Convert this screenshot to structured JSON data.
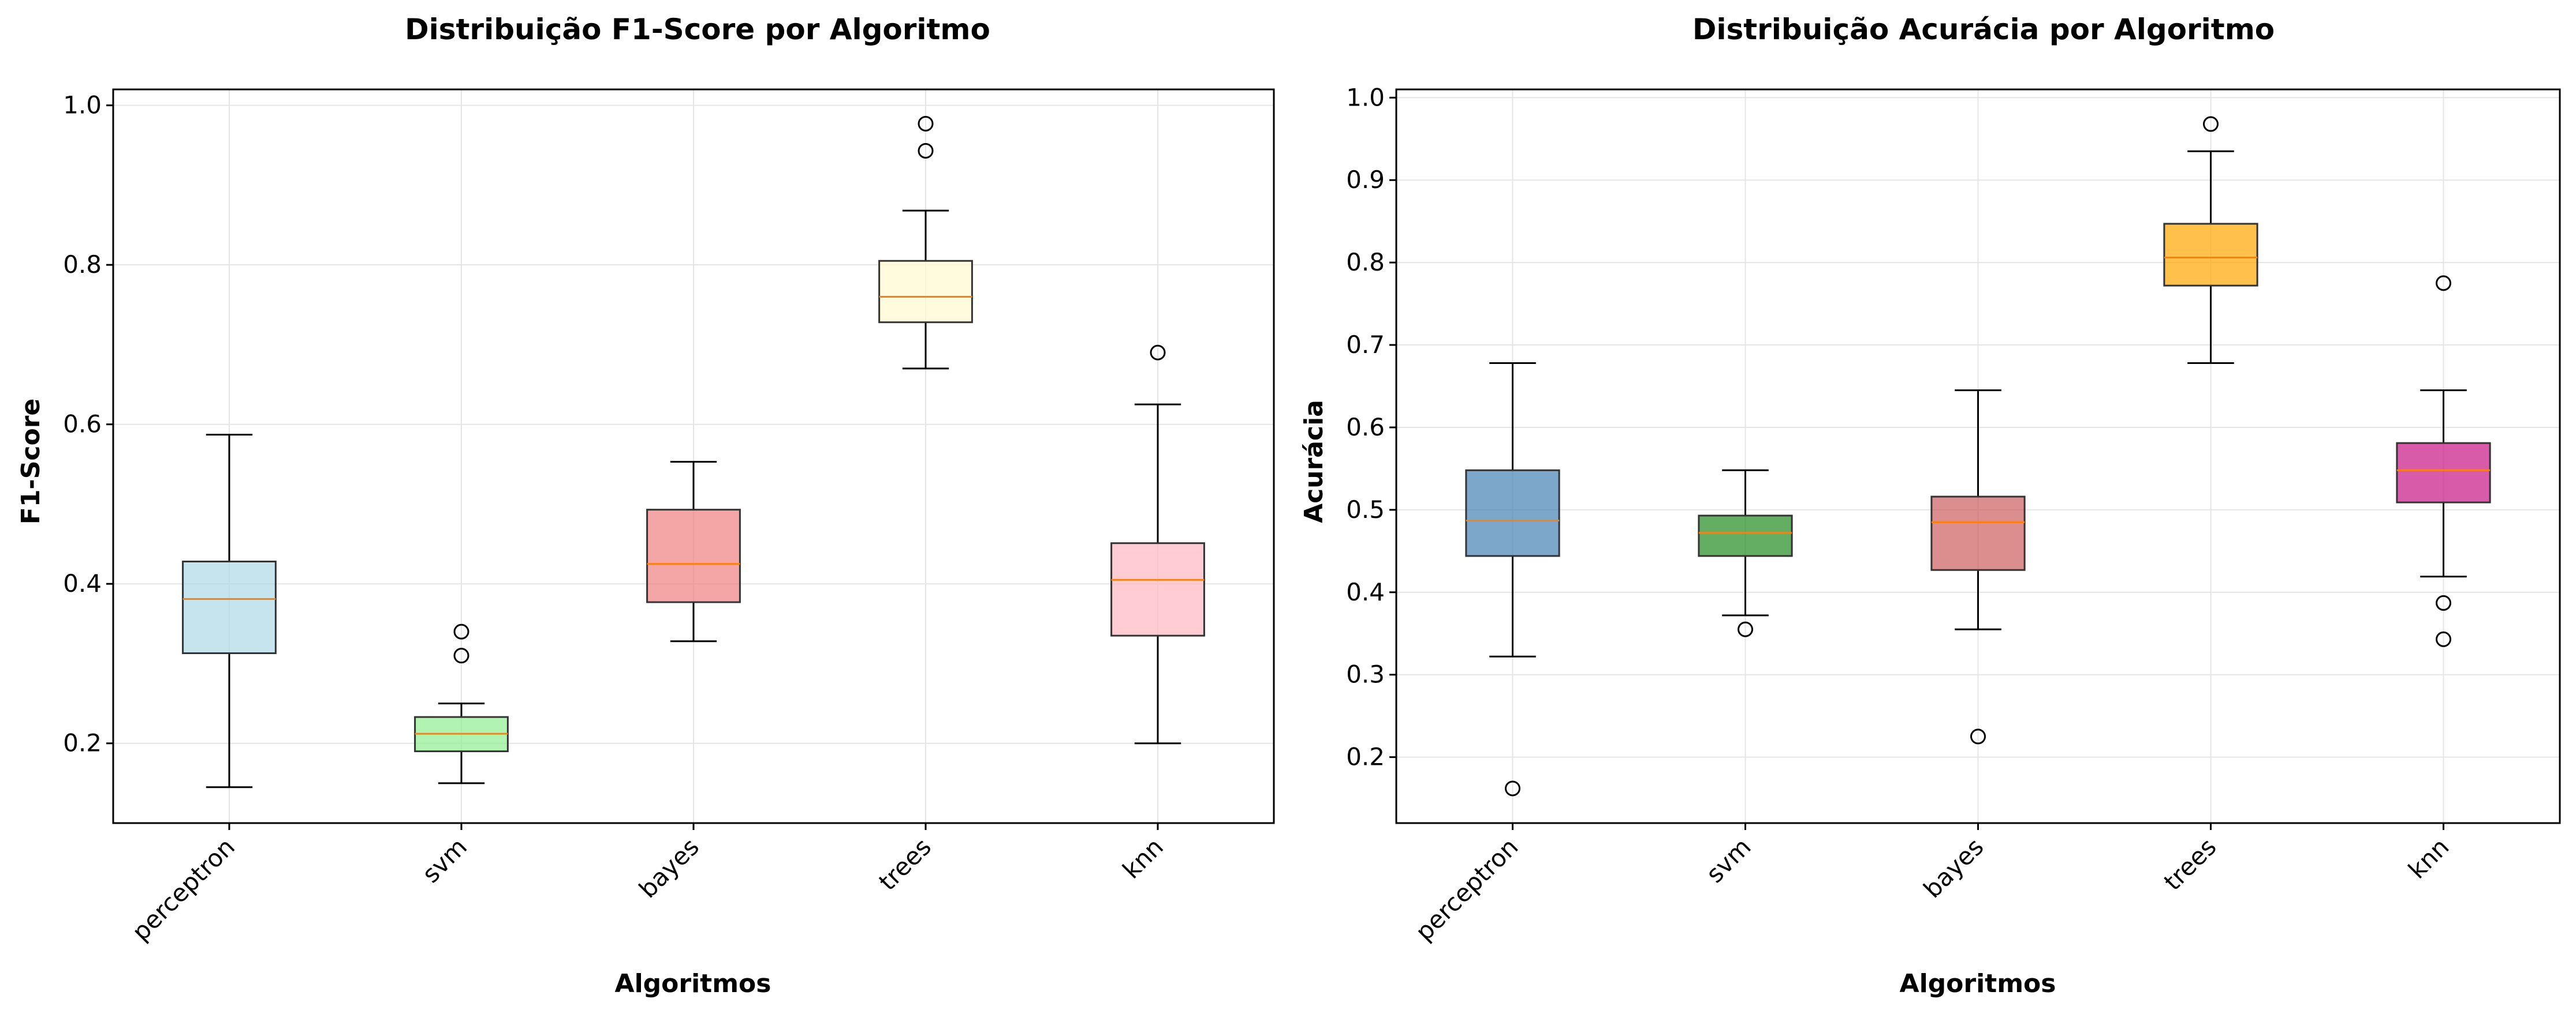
{
  "chart_data": [
    {
      "type": "boxplot",
      "title": "Distribuição F1-Score por Algoritmo",
      "xlabel": "Algoritmos",
      "ylabel": "F1-Score",
      "ylim": [
        0.1,
        1.02
      ],
      "yticks": [
        0.2,
        0.4,
        0.6,
        0.8,
        1.0
      ],
      "ytick_labels": [
        "0.2",
        "0.4",
        "0.6",
        "0.8",
        "1.0"
      ],
      "grid": true,
      "categories": [
        "perceptron",
        "svm",
        "bayes",
        "trees",
        "knn"
      ],
      "boxes": [
        {
          "name": "perceptron",
          "whisker_low": 0.145,
          "q1": 0.313,
          "median": 0.381,
          "q3": 0.428,
          "whisker_high": 0.587,
          "outliers": [],
          "color": "#add8e6"
        },
        {
          "name": "svm",
          "whisker_low": 0.15,
          "q1": 0.19,
          "median": 0.212,
          "q3": 0.233,
          "whisker_high": 0.25,
          "outliers": [
            0.31,
            0.34
          ],
          "color": "#90ee90"
        },
        {
          "name": "bayes",
          "whisker_low": 0.328,
          "q1": 0.377,
          "median": 0.425,
          "q3": 0.493,
          "whisker_high": 0.553,
          "outliers": [],
          "color": "#f08080"
        },
        {
          "name": "trees",
          "whisker_low": 0.67,
          "q1": 0.728,
          "median": 0.76,
          "q3": 0.805,
          "whisker_high": 0.868,
          "outliers": [
            0.943,
            0.977
          ],
          "color": "#fffacd"
        },
        {
          "name": "knn",
          "whisker_low": 0.2,
          "q1": 0.335,
          "median": 0.405,
          "q3": 0.451,
          "whisker_high": 0.625,
          "outliers": [
            0.69
          ],
          "color": "#ffb6c1"
        }
      ]
    },
    {
      "type": "boxplot",
      "title": "Distribuição Acurácia por Algoritmo",
      "xlabel": "Algoritmos",
      "ylabel": "Acurácia",
      "ylim": [
        0.12,
        1.01
      ],
      "yticks": [
        0.2,
        0.3,
        0.4,
        0.5,
        0.6,
        0.7,
        0.8,
        0.9,
        1.0
      ],
      "ytick_labels": [
        "0.2",
        "0.3",
        "0.4",
        "0.5",
        "0.6",
        "0.7",
        "0.8",
        "0.9",
        "1.0"
      ],
      "grid": true,
      "categories": [
        "perceptron",
        "svm",
        "bayes",
        "trees",
        "knn"
      ],
      "boxes": [
        {
          "name": "perceptron",
          "whisker_low": 0.322,
          "q1": 0.444,
          "median": 0.487,
          "q3": 0.548,
          "whisker_high": 0.678,
          "outliers": [
            0.162
          ],
          "color": "#4682b4"
        },
        {
          "name": "svm",
          "whisker_low": 0.372,
          "q1": 0.444,
          "median": 0.472,
          "q3": 0.493,
          "whisker_high": 0.548,
          "outliers": [
            0.355
          ],
          "color": "#228b22"
        },
        {
          "name": "bayes",
          "whisker_low": 0.355,
          "q1": 0.427,
          "median": 0.485,
          "q3": 0.516,
          "whisker_high": 0.645,
          "outliers": [
            0.225
          ],
          "color": "#cd5c5c"
        },
        {
          "name": "trees",
          "whisker_low": 0.678,
          "q1": 0.772,
          "median": 0.806,
          "q3": 0.847,
          "whisker_high": 0.935,
          "outliers": [
            0.968
          ],
          "color": "#ffa500"
        },
        {
          "name": "knn",
          "whisker_low": 0.419,
          "q1": 0.509,
          "median": 0.548,
          "q3": 0.581,
          "whisker_high": 0.645,
          "outliers": [
            0.775,
            0.387,
            0.343
          ],
          "color": "#c71585"
        }
      ]
    }
  ],
  "style": {
    "median_color": "#ff7f0e",
    "grid_color": "#e5e5e5",
    "axis_color": "#000000",
    "box_edge_color": "#333333"
  }
}
